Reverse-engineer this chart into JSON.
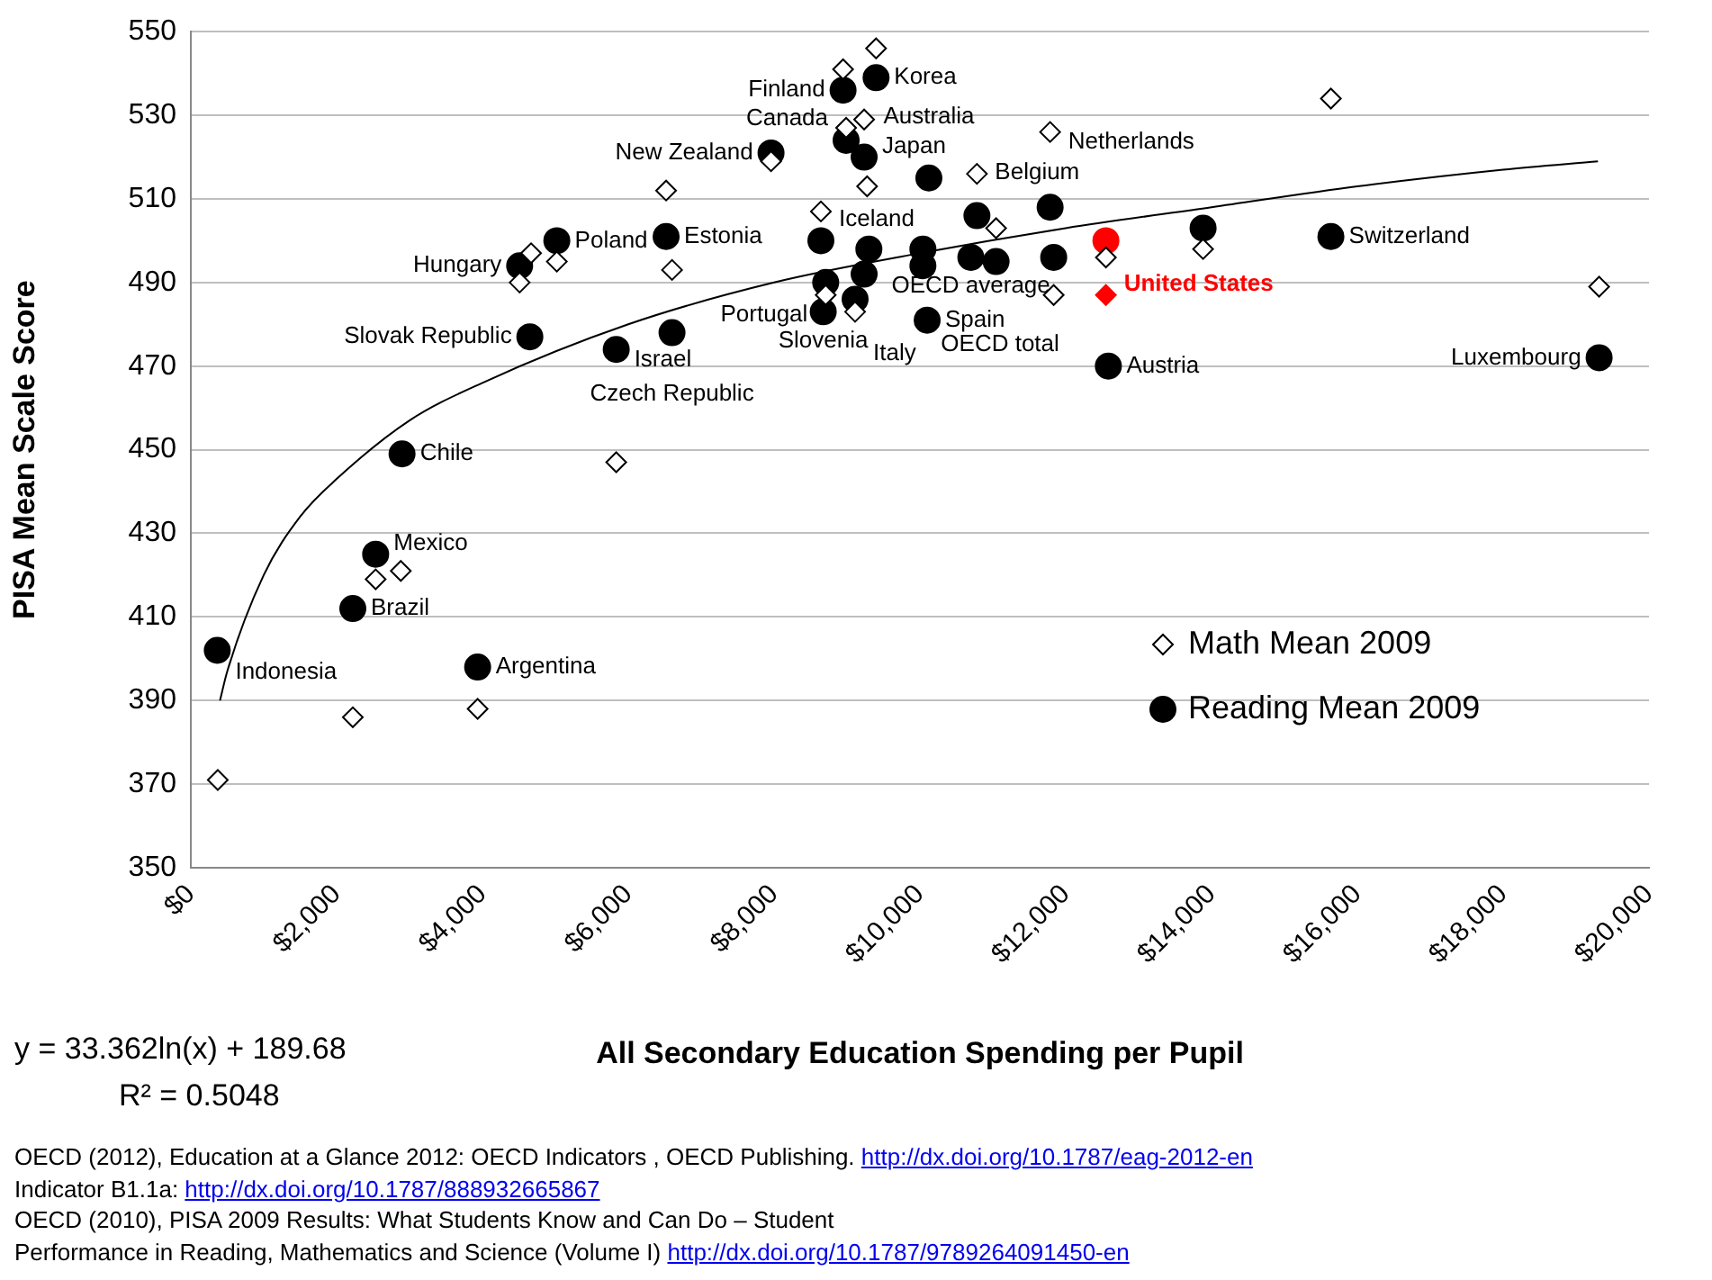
{
  "chart_data": {
    "type": "scatter",
    "xlabel": "All Secondary Education Spending per Pupil",
    "ylabel": "PISA Mean Scale Score",
    "xlim": [
      0,
      20000
    ],
    "xticks": [
      {
        "value": 0,
        "label": "$0"
      },
      {
        "value": 2000,
        "label": "$2,000"
      },
      {
        "value": 4000,
        "label": "$4,000"
      },
      {
        "value": 6000,
        "label": "$6,000"
      },
      {
        "value": 8000,
        "label": "$8,000"
      },
      {
        "value": 10000,
        "label": "$10,000"
      },
      {
        "value": 12000,
        "label": "$12,000"
      },
      {
        "value": 14000,
        "label": "$14,000"
      },
      {
        "value": 16000,
        "label": "$16,000"
      },
      {
        "value": 18000,
        "label": "$18,000"
      },
      {
        "value": 20000,
        "label": "$20,000"
      }
    ],
    "ylim": [
      350,
      550
    ],
    "yticks": [
      350,
      370,
      390,
      410,
      430,
      450,
      470,
      490,
      510,
      530,
      550
    ],
    "grid": "y",
    "legend": "bottom right",
    "series": [
      {
        "name": "Math Mean 2009",
        "color": "#000000",
        "marker": "diamond",
        "x": [
          370,
          2222,
          2535,
          2880,
          3934,
          5835,
          4667,
          4510,
          5020,
          6519,
          6600,
          7958,
          8642,
          8946,
          8988,
          9399,
          9235,
          9276,
          10782,
          11045,
          11786,
          15637,
          13884,
          12551,
          11835,
          12551,
          19316,
          9111,
          8708
        ],
        "values": [
          371,
          386,
          419,
          421,
          388,
          447,
          497,
          490,
          495,
          512,
          493,
          519,
          507,
          541,
          527,
          546,
          529,
          513,
          516,
          503,
          526,
          534,
          498,
          496,
          487,
          487,
          489,
          483,
          487
        ],
        "colors": [
          "#000000",
          "#000000",
          "#000000",
          "#000000",
          "#000000",
          "#000000",
          "#000000",
          "#000000",
          "#000000",
          "#000000",
          "#000000",
          "#000000",
          "#000000",
          "#000000",
          "#000000",
          "#000000",
          "#000000",
          "#000000",
          "#000000",
          "#000000",
          "#000000",
          "#000000",
          "#000000",
          "#000000",
          "#000000",
          "#ff0000",
          "#000000",
          "#000000",
          "#000000"
        ]
      },
      {
        "name": "Reading Mean 2009",
        "color": "#000000",
        "marker": "circle",
        "x": [
          363,
          2222,
          2535,
          2897,
          3934,
          4650,
          4510,
          5020,
          5835,
          6519,
          6600,
          7958,
          8642,
          8946,
          9399,
          8988,
          9235,
          10123,
          10782,
          11786,
          12551,
          15637,
          12585,
          19316,
          13884,
          8708,
          8674,
          9111,
          10099,
          10041,
          10699,
          9300,
          9235,
          10041,
          11045,
          11835
        ],
        "values": [
          402,
          412,
          425,
          449,
          398,
          477,
          494,
          500,
          474,
          501,
          478,
          521,
          500,
          536,
          539,
          524,
          520,
          515,
          506,
          508,
          500,
          501,
          470,
          472,
          503,
          490,
          483,
          486,
          481,
          494,
          496,
          498,
          492,
          498,
          495,
          496
        ],
        "colors": [
          "#000000",
          "#000000",
          "#000000",
          "#000000",
          "#000000",
          "#000000",
          "#000000",
          "#000000",
          "#000000",
          "#000000",
          "#000000",
          "#000000",
          "#000000",
          "#000000",
          "#000000",
          "#000000",
          "#000000",
          "#000000",
          "#000000",
          "#000000",
          "#ff0000",
          "#000000",
          "#000000",
          "#000000",
          "#000000",
          "#000000",
          "#000000",
          "#000000",
          "#000000",
          "#000000",
          "#000000",
          "#000000",
          "#000000",
          "#000000",
          "#000000",
          "#000000"
        ]
      },
      {
        "type": "line",
        "color": "#000000",
        "marker": "none",
        "x": [
          400,
          500,
          1000,
          1500,
          2000,
          3000,
          4000,
          6000,
          8000,
          10000,
          12000,
          14000,
          16000,
          18000,
          19300
        ],
        "values": [
          390,
          397,
          420,
          434,
          443,
          457,
          466,
          480,
          490,
          497,
          503,
          508,
          513,
          517,
          519
        ]
      }
    ],
    "annotations": [
      {
        "text": "Indonesia",
        "x": 363,
        "y": 402
      },
      {
        "text": "Brazil",
        "x": 2222,
        "y": 412
      },
      {
        "text": "Mexico",
        "x": 2535,
        "y": 425
      },
      {
        "text": "Chile",
        "x": 2897,
        "y": 449
      },
      {
        "text": "Argentina",
        "x": 3934,
        "y": 398
      },
      {
        "text": "Slovak Republic",
        "x": 4650,
        "y": 477
      },
      {
        "text": "Hungary",
        "x": 4510,
        "y": 494
      },
      {
        "text": "Poland",
        "x": 5020,
        "y": 500
      },
      {
        "text": "Israel",
        "x": 5835,
        "y": 474
      },
      {
        "text": "Estonia",
        "x": 6519,
        "y": 501
      },
      {
        "text": "Czech Republic",
        "x": 6600,
        "y": 478
      },
      {
        "text": "New Zealand",
        "x": 7958,
        "y": 521
      },
      {
        "text": "Iceland",
        "x": 8642,
        "y": 500
      },
      {
        "text": "Finland",
        "x": 8946,
        "y": 536
      },
      {
        "text": "Korea",
        "x": 9399,
        "y": 539
      },
      {
        "text": "Canada",
        "x": 8988,
        "y": 524
      },
      {
        "text": "Japan",
        "x": 9235,
        "y": 520
      },
      {
        "text": "Australia",
        "x": 10123,
        "y": 515
      },
      {
        "text": "Belgium",
        "x": 10782,
        "y": 506
      },
      {
        "text": "Netherlands",
        "x": 11786,
        "y": 508
      },
      {
        "text": "United States",
        "x": 12551,
        "y": 500
      },
      {
        "text": "Switzerland",
        "x": 15637,
        "y": 501
      },
      {
        "text": "Austria",
        "x": 12585,
        "y": 470
      },
      {
        "text": "Luxembourg",
        "x": 19316,
        "y": 472
      },
      {
        "text": "Portugal",
        "x": 8708,
        "y": 490
      },
      {
        "text": "Slovenia",
        "x": 8674,
        "y": 483
      },
      {
        "text": "Italy",
        "x": 9111,
        "y": 486
      },
      {
        "text": "Spain",
        "x": 10099,
        "y": 481
      },
      {
        "text": "OECD total",
        "x": 10041,
        "y": 494
      },
      {
        "text": "OECD average",
        "x": 10699,
        "y": 496
      },
      "y = 33.362ln(x) + 189.68",
      "R² = 0.5048",
      "OECD (2012), Education at a Glance 2012: OECD Indicators ,  OECD Publishing. http://dx.doi.org/10.1787/eag-2012-en",
      "Indicator B1.1a:  http://dx.doi.org/10.1787/888932665867",
      "OECD (2010), PISA 2009 Results: What Students Know and Can Do – Student",
      "Performance in Reading, Mathematics and Science (Volume I) http://dx.doi.org/10.1787/9789264091450-en"
    ]
  }
}
